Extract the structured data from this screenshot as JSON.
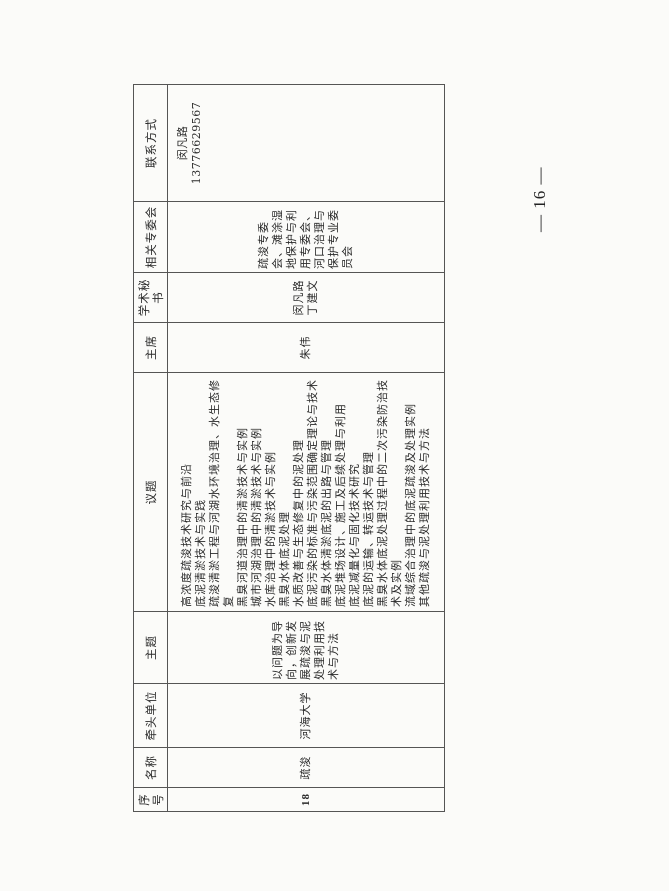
{
  "table": {
    "headers": [
      "序号",
      "名称",
      "牵头单位",
      "主题",
      "议题",
      "主席",
      "学术秘书",
      "相关专委会",
      "联系方式"
    ],
    "row": {
      "index": "18",
      "name": "疏浚",
      "lead_unit": "河海大学",
      "theme": "以问题为导向，创新发展疏浚与泥处理利用技术与方法",
      "topics": [
        "高浓度疏浚技术研究与前沿",
        "底泥清淤技术与实践",
        "疏浚清淤工程与河湖水环境治理、水生态修复",
        "黑臭河道治理中的清淤技术与实例",
        "城市河湖治理中的清淤技术与实例",
        "水库治理中的清淤技术与实例",
        "黑臭水体底泥处理",
        "水质改善与生态修复中的泥处理",
        "底泥污染的标准与污染范围确定理论与技术",
        "黑臭水体清淤底泥的出路与管理",
        "底泥堆场设计、施工及后续处理与利用",
        "底泥减量化与固化技术研究",
        "底泥的运输、转运技术与管理",
        "黑臭水体底泥处理过程中的二次污染防治技术及实例",
        "流域综合治理中的底泥疏浚及处理实例",
        "其他疏浚与泥处理利用技术与方法"
      ],
      "chair": "朱伟",
      "secretary": "闵凡路 丁建文",
      "committee": "疏浚专委会、滩涂湿地保护与利用专委会、河口治理与保护专业委员会",
      "contact": "闵凡路 13776629567"
    }
  },
  "page_number": "— 16 —"
}
